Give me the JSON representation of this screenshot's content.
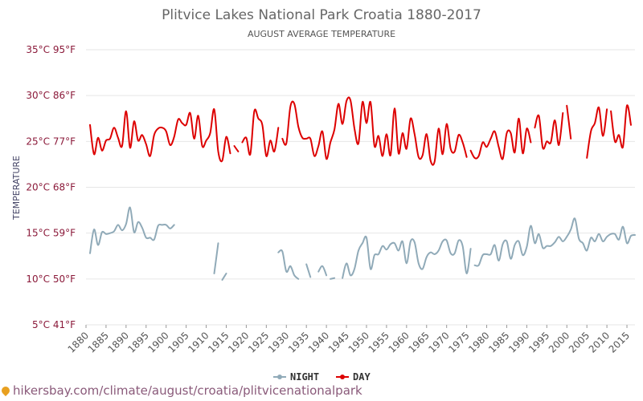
{
  "chart_data": {
    "type": "line",
    "title": "Plitvice Lakes National Park Croatia 1880-2017",
    "subtitle": "AUGUST AVERAGE TEMPERATURE",
    "ylabel": "TEMPERATURE",
    "ylim": [
      5,
      35
    ],
    "xlim": [
      1880,
      2017
    ],
    "y_ticks": [
      "5°C 41°F",
      "10°C 50°F",
      "15°C 59°F",
      "20°C 68°F",
      "25°C 77°F",
      "30°C 86°F",
      "35°C 95°F"
    ],
    "y_tick_values": [
      5,
      10,
      15,
      20,
      25,
      30,
      35
    ],
    "x_ticks": [
      "1880",
      "1885",
      "1890",
      "1895",
      "1900",
      "1905",
      "1910",
      "1915",
      "1920",
      "1925",
      "1930",
      "1935",
      "1940",
      "1945",
      "1950",
      "1955",
      "1960",
      "1965",
      "1970",
      "1975",
      "1980",
      "1985",
      "1990",
      "1995",
      "2000",
      "2005",
      "2010",
      "2015"
    ],
    "x_tick_values": [
      1880,
      1885,
      1890,
      1895,
      1900,
      1905,
      1910,
      1915,
      1920,
      1925,
      1930,
      1935,
      1940,
      1945,
      1950,
      1955,
      1960,
      1965,
      1970,
      1975,
      1980,
      1985,
      1990,
      1995,
      2000,
      2005,
      2010,
      2015
    ],
    "grid": true,
    "legend_position": "bottom-center",
    "series": [
      {
        "name": "NIGHT",
        "color": "#90aab8",
        "segments": [
          {
            "x": [
              1881,
              1882,
              1883,
              1884,
              1885,
              1886,
              1887,
              1888,
              1889,
              1890,
              1891,
              1892,
              1893,
              1894,
              1895,
              1896,
              1897,
              1898,
              1899,
              1900,
              1901,
              1902
            ],
            "y": [
              12.8,
              15.4,
              13.7,
              15.1,
              14.9,
              15.0,
              15.2,
              15.9,
              15.3,
              16.0,
              17.8,
              15.1,
              16.2,
              15.6,
              14.5,
              14.5,
              14.3,
              15.8,
              15.9,
              15.9,
              15.5,
              15.9
            ]
          },
          {
            "x": [
              1912,
              1913
            ],
            "y": [
              10.6,
              13.9
            ]
          },
          {
            "x": [
              1914,
              1915
            ],
            "y": [
              9.9,
              10.6
            ]
          },
          {
            "x": [
              1928,
              1929,
              1930,
              1931,
              1932,
              1933
            ],
            "y": [
              12.9,
              13.0,
              10.8,
              11.4,
              10.4,
              10.0
            ]
          },
          {
            "x": [
              1935,
              1936
            ],
            "y": [
              11.6,
              10.2
            ]
          },
          {
            "x": [
              1938,
              1939,
              1940
            ],
            "y": [
              10.8,
              11.4,
              10.4
            ]
          },
          {
            "x": [
              1941,
              1942
            ],
            "y": [
              10.0,
              10.1
            ]
          },
          {
            "x": [
              1944,
              1945,
              1946,
              1947,
              1948,
              1949,
              1950,
              1951,
              1952,
              1953,
              1954,
              1955,
              1956,
              1957,
              1958,
              1959,
              1960,
              1961,
              1962,
              1963,
              1964,
              1965,
              1966,
              1967,
              1968,
              1969,
              1970,
              1971,
              1972,
              1973,
              1974,
              1975,
              1976
            ],
            "y": [
              10.1,
              11.7,
              10.4,
              11.1,
              13.1,
              13.9,
              14.5,
              11.1,
              12.6,
              12.7,
              13.6,
              13.2,
              13.8,
              13.9,
              13.1,
              14.1,
              11.7,
              14.1,
              14.0,
              11.7,
              11.1,
              12.4,
              12.9,
              12.7,
              13.1,
              14.1,
              14.2,
              12.8,
              12.8,
              14.2,
              13.6,
              10.6,
              13.3
            ]
          },
          {
            "x": [
              1977,
              1978,
              1979,
              1980,
              1981,
              1982,
              1983,
              1984,
              1985,
              1986,
              1987,
              1988,
              1989,
              1990,
              1991,
              1992,
              1993,
              1994,
              1995,
              1996,
              1997,
              1998,
              1999,
              2000,
              2001,
              2002,
              2003,
              2004,
              2005,
              2006,
              2007,
              2008,
              2009,
              2010,
              2011,
              2012,
              2013,
              2014,
              2015,
              2016,
              2017
            ],
            "y": [
              11.5,
              11.5,
              12.6,
              12.7,
              12.7,
              13.7,
              12.0,
              13.8,
              14.1,
              12.2,
              13.7,
              14.1,
              12.6,
              13.5,
              15.8,
              13.9,
              14.9,
              13.4,
              13.6,
              13.6,
              14.0,
              14.6,
              14.1,
              14.6,
              15.4,
              16.6,
              14.4,
              13.9,
              13.1,
              14.5,
              14.1,
              14.9,
              14.1,
              14.6,
              14.9,
              14.9,
              14.3,
              15.7,
              13.9,
              14.7,
              14.8
            ]
          }
        ]
      },
      {
        "name": "DAY",
        "color": "#dd0000",
        "segments": [
          {
            "x": [
              1881,
              1882,
              1883,
              1884,
              1885,
              1886,
              1887,
              1888,
              1889,
              1890,
              1891,
              1892,
              1893,
              1894,
              1895,
              1896,
              1897,
              1898,
              1899,
              1900,
              1901,
              1902,
              1903,
              1904,
              1905,
              1906,
              1907,
              1908,
              1909,
              1910,
              1911,
              1912,
              1913,
              1914,
              1915,
              1916
            ],
            "y": [
              26.8,
              23.6,
              25.4,
              24.0,
              25.1,
              25.3,
              26.5,
              25.4,
              24.5,
              28.3,
              24.3,
              27.2,
              25.1,
              25.7,
              24.7,
              23.4,
              25.7,
              26.4,
              26.5,
              26.1,
              24.6,
              25.5,
              27.4,
              27.0,
              26.8,
              28.1,
              25.3,
              27.8,
              24.5,
              25.1,
              25.9,
              28.5,
              23.9,
              22.9,
              25.5,
              23.7
            ]
          },
          {
            "x": [
              1917,
              1918
            ],
            "y": [
              24.5,
              23.9
            ]
          },
          {
            "x": [
              1919,
              1920,
              1921,
              1922,
              1923,
              1924,
              1925,
              1926,
              1927,
              1928
            ],
            "y": [
              24.9,
              25.4,
              23.6,
              28.3,
              27.5,
              26.8,
              23.4,
              25.1,
              23.9,
              26.5
            ]
          },
          {
            "x": [
              1929,
              1930,
              1931,
              1932,
              1933,
              1934,
              1935,
              1936,
              1937,
              1938,
              1939,
              1940,
              1941,
              1942,
              1943,
              1944,
              1945,
              1946,
              1947,
              1948,
              1949,
              1950,
              1951,
              1952,
              1953,
              1954,
              1955,
              1956,
              1957,
              1958,
              1959,
              1960,
              1961,
              1962,
              1963,
              1964,
              1965,
              1966,
              1967,
              1968,
              1969,
              1970,
              1971,
              1972,
              1973,
              1974,
              1975
            ],
            "y": [
              25.3,
              24.8,
              28.8,
              29.1,
              26.6,
              25.4,
              25.3,
              25.3,
              23.4,
              24.5,
              26.1,
              23.1,
              24.9,
              26.3,
              29.1,
              26.9,
              29.4,
              29.5,
              26.4,
              24.8,
              29.3,
              27.0,
              29.3,
              24.5,
              25.6,
              23.4,
              25.8,
              23.5,
              28.6,
              23.7,
              25.9,
              24.2,
              27.5,
              25.8,
              23.3,
              23.5,
              25.8,
              22.9,
              22.8,
              26.4,
              23.6,
              26.9,
              24.2,
              23.9,
              25.7,
              24.9,
              23.3
            ]
          },
          {
            "x": [
              1976,
              1977,
              1978,
              1979,
              1980,
              1981,
              1982,
              1983,
              1984,
              1985,
              1986,
              1987,
              1988,
              1989,
              1990,
              1991
            ],
            "y": [
              24.0,
              23.2,
              23.4,
              24.9,
              24.4,
              25.3,
              26.1,
              24.4,
              23.1,
              25.9,
              25.9,
              23.8,
              27.5,
              23.7,
              26.4,
              24.9
            ]
          },
          {
            "x": [
              1992,
              1993,
              1994,
              1995,
              1996,
              1997,
              1998,
              1999
            ],
            "y": [
              26.5,
              27.8,
              24.3,
              25.0,
              24.9,
              27.3,
              24.6,
              28.1
            ]
          },
          {
            "x": [
              2000,
              2001
            ],
            "y": [
              28.9,
              25.3
            ]
          },
          {
            "x": [
              2005,
              2006,
              2007,
              2008,
              2009,
              2010
            ],
            "y": [
              23.2,
              26.1,
              27.0,
              28.7,
              25.6,
              28.5
            ]
          },
          {
            "x": [
              2011,
              2012,
              2013,
              2014,
              2015,
              2016
            ],
            "y": [
              28.3,
              25.0,
              25.7,
              24.4,
              28.9,
              26.8
            ]
          }
        ]
      }
    ]
  },
  "watermark": {
    "icon": "map-pin-icon",
    "text": "hikersbay.com/climate/august/croatia/plitvicenationalpark"
  }
}
